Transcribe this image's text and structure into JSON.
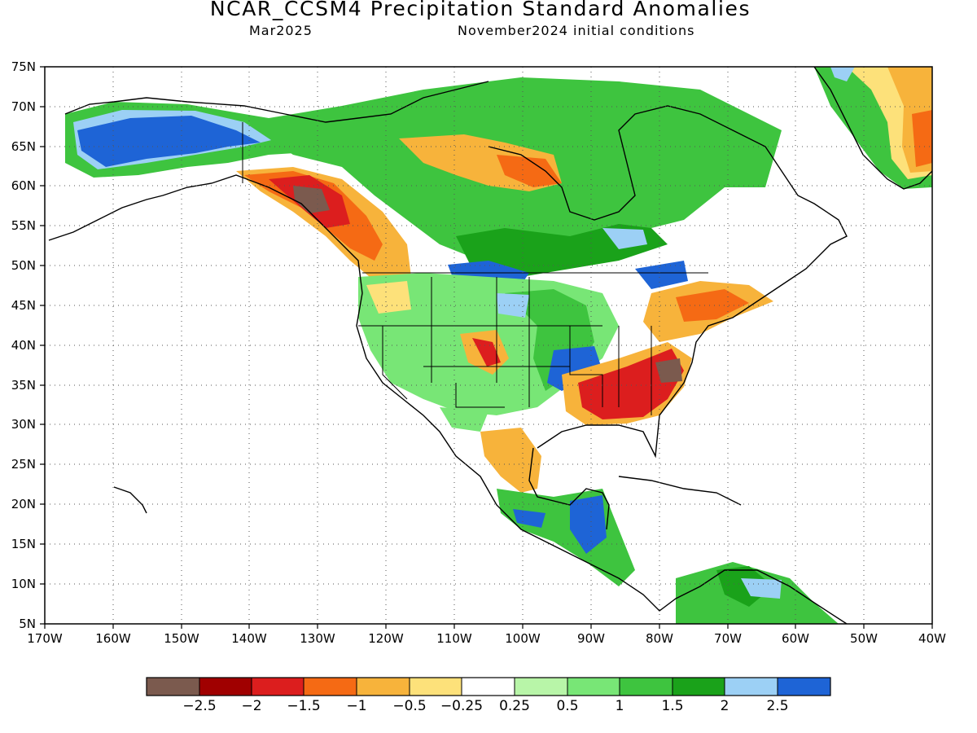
{
  "title": "NCAR_CCSM4 Precipitation Standard Anomalies",
  "subtitle_left": "Mar2025",
  "subtitle_right": "November2024 initial conditions",
  "axes": {
    "lat_labels": [
      "75N",
      "70N",
      "65N",
      "60N",
      "55N",
      "50N",
      "45N",
      "40N",
      "35N",
      "30N",
      "25N",
      "20N",
      "15N",
      "10N",
      "5N"
    ],
    "lon_labels": [
      "170W",
      "160W",
      "150W",
      "140W",
      "130W",
      "120W",
      "110W",
      "100W",
      "90W",
      "80W",
      "70W",
      "60W",
      "50W",
      "40W"
    ]
  },
  "colorbar": {
    "colors": [
      "#7b5a4e",
      "#a00000",
      "#dc1e1e",
      "#f56a14",
      "#f7b33b",
      "#fde17a",
      "#ffffff",
      "#b8f5a8",
      "#78e676",
      "#3ec43f",
      "#1aa21a",
      "#9cd0f5",
      "#1e64d6"
    ],
    "labels": [
      "−2.5",
      "−2",
      "−1.5",
      "−1",
      "−0.5",
      "−0.25",
      "0.25",
      "0.5",
      "1",
      "1.5",
      "2",
      "2.5"
    ]
  },
  "regions": [
    {
      "name": "alaska-wet",
      "color": "#1e64d6"
    },
    {
      "name": "canada-wet",
      "color": "#3ec43f"
    },
    {
      "name": "pacific-northwest-dry",
      "color": "#dc1e1e"
    },
    {
      "name": "southeast-dry",
      "color": "#dc1e1e"
    },
    {
      "name": "central-us-wet",
      "color": "#1e64d6"
    },
    {
      "name": "greenland-dry",
      "color": "#f56a14"
    },
    {
      "name": "central-america-wet",
      "color": "#1e64d6"
    }
  ]
}
